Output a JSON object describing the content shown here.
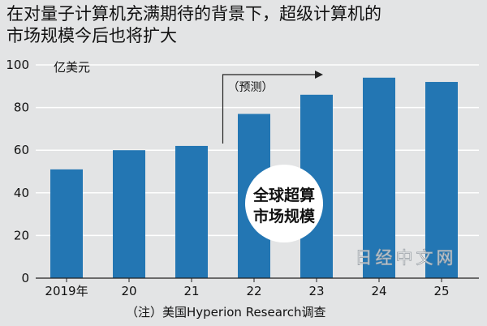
{
  "title_lines": [
    "在对量子计算机充满期待的背景下，超级计算机的",
    "市场规模今后也将扩大"
  ],
  "ylabel": "亿美元",
  "note": "（注）美国Hyperion Research调查",
  "forecast_label": "（预测）",
  "circle_label_lines": [
    "全球超算",
    "市场规模"
  ],
  "watermark": "日经中文网",
  "colors": {
    "bar": "#2376b3",
    "background": "#e3e4e5",
    "grid": "#ffffff"
  },
  "chart_data": {
    "type": "bar",
    "categories": [
      "2019年",
      "20",
      "21",
      "22",
      "23",
      "24",
      "25"
    ],
    "values": [
      51,
      60,
      62,
      77,
      86,
      94,
      92
    ],
    "xlabel": "",
    "ylabel": "亿美元",
    "ylim": [
      0,
      100
    ],
    "yticks": [
      0,
      20,
      40,
      60,
      80,
      100
    ],
    "forecast_start_index": 3,
    "grid": true
  }
}
